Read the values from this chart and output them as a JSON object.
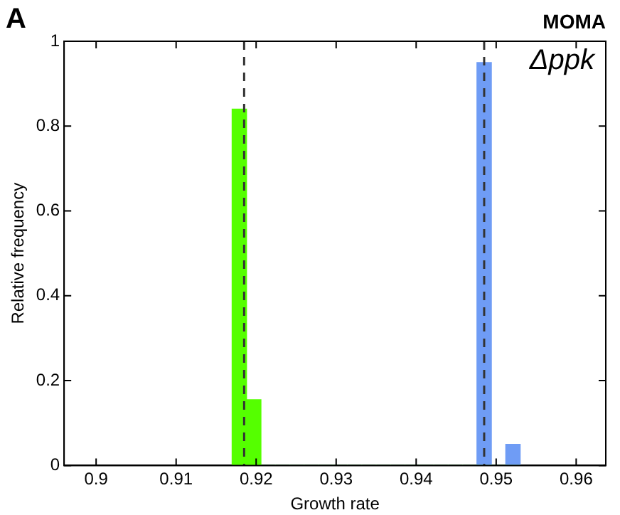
{
  "chart_data": {
    "type": "histogram",
    "title": "MOMA",
    "xlabel": "Growth rate",
    "ylabel": "Relative frequency",
    "annotations": [
      "A",
      "Δppk"
    ],
    "bins": [
      0.917,
      0.9188,
      0.9206,
      0.9224,
      0.9242,
      0.926,
      0.9278,
      0.9296,
      0.9314,
      0.9332,
      0.935,
      0.9368,
      0.9386,
      0.9404,
      0.9422,
      0.944,
      0.9458,
      0.9476,
      0.9494,
      0.9512,
      0.953
    ],
    "series": [
      {
        "color": "#55ff00",
        "values": [
          0.84,
          0.155,
          0,
          0,
          0,
          0,
          0,
          0,
          0,
          0,
          0,
          0,
          0,
          0,
          0,
          0,
          0,
          0,
          0,
          0
        ]
      },
      {
        "color": "#6f9cf5",
        "values": [
          0,
          0,
          0,
          0,
          0,
          0,
          0,
          0,
          0,
          0,
          0,
          0,
          0,
          0,
          0,
          0,
          0,
          0.95,
          0,
          0.05
        ]
      }
    ],
    "ref_lines": [
      {
        "axis": "x",
        "value": 0.9185,
        "color": "#333333",
        "line_style": "dashed"
      },
      {
        "axis": "x",
        "value": 0.9485,
        "color": "#333333",
        "line_style": "dashed"
      }
    ],
    "xlim": [
      0.896,
      0.9637
    ],
    "xticks": [
      0.9,
      0.91,
      0.92,
      0.93,
      0.94,
      0.95,
      0.96
    ],
    "ylim": [
      0,
      1
    ],
    "yticks": [
      0,
      0.2,
      0.4,
      0.6,
      0.8,
      1
    ],
    "grid": false,
    "legend": false
  }
}
